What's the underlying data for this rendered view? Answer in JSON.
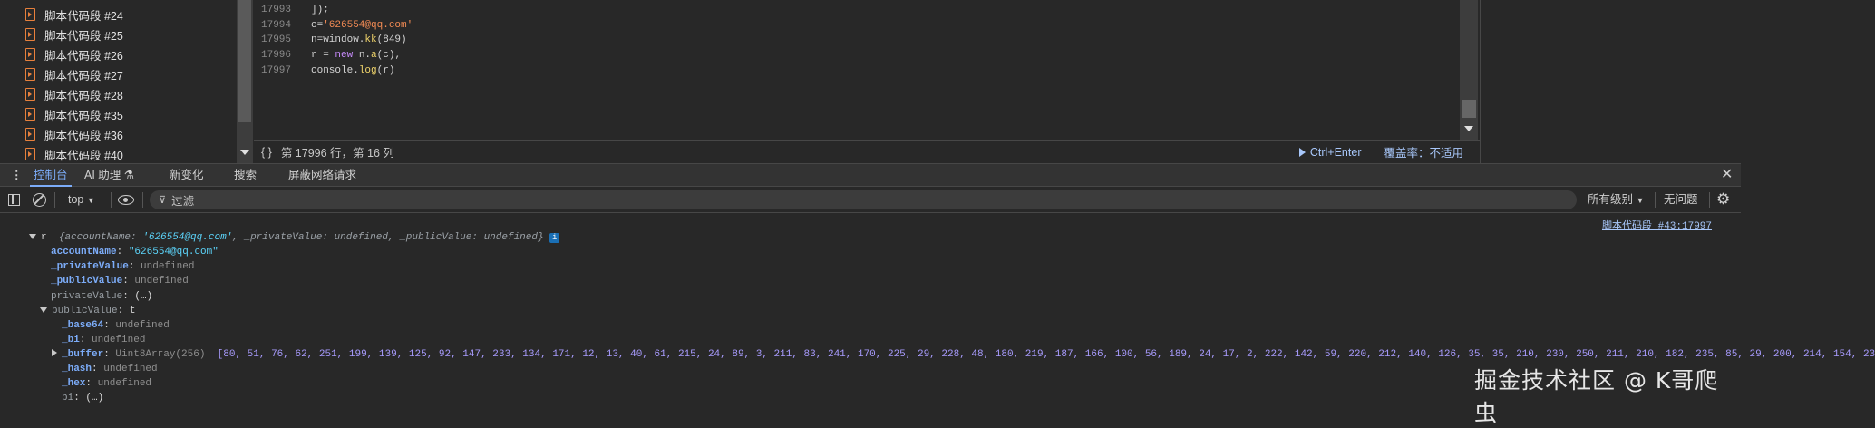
{
  "sidebar": {
    "items": [
      {
        "label": "脚本代码段 #24"
      },
      {
        "label": "脚本代码段 #25"
      },
      {
        "label": "脚本代码段 #26"
      },
      {
        "label": "脚本代码段 #27"
      },
      {
        "label": "脚本代码段 #28"
      },
      {
        "label": "脚本代码段 #35"
      },
      {
        "label": "脚本代码段 #36"
      },
      {
        "label": "脚本代码段 #40"
      }
    ]
  },
  "editor": {
    "lines": [
      {
        "num": "17993",
        "code": "]);"
      },
      {
        "num": "17994",
        "pre": "c=",
        "str": "'626554@qq.com'"
      },
      {
        "num": "17995",
        "pre": "n=window.",
        "fn": "kk",
        "post": "(849)"
      },
      {
        "num": "17996",
        "pre": "r = ",
        "kw": "new",
        "mid": " n.",
        "fn": "a",
        "post": "(c),"
      },
      {
        "num": "17997",
        "pre": "console.",
        "fn": "log",
        "post": "(r)"
      }
    ],
    "status": {
      "braces": "{ }",
      "position": "第 17996 行，第 16 列",
      "run": "Ctrl+Enter",
      "coverage": "覆盖率：不适用"
    }
  },
  "tabs": [
    {
      "label": "控制台",
      "active": true
    },
    {
      "label": "AI 助理 ⚗"
    },
    {
      "label": "新变化"
    },
    {
      "label": "搜索"
    },
    {
      "label": "屏蔽网络请求"
    }
  ],
  "toolbar": {
    "context": "top",
    "filter_placeholder": "过滤",
    "levels": "所有级别",
    "issues": "无问题"
  },
  "console": {
    "source_link": "脚本代码段 #43:17997",
    "summary": {
      "var": "r",
      "open": "{",
      "k1": "accountName",
      "v1": "'626554@qq.com'",
      "k2": "_privateValue",
      "v2": "undefined",
      "k3": "_publicValue",
      "v3": "undefined",
      "close": "}"
    },
    "props": [
      {
        "key": "accountName",
        "value": "\"626554@qq.com\""
      },
      {
        "key": "_privateValue",
        "value": "undefined"
      },
      {
        "key": "_publicValue",
        "value": "undefined"
      },
      {
        "key": "privateValue",
        "value": "(…)"
      }
    ],
    "publicValue": {
      "key": "publicValue",
      "value": "t",
      "children": [
        {
          "key": "_base64",
          "value": "undefined"
        },
        {
          "key": "_bi",
          "value": "undefined"
        },
        {
          "key": "_buffer",
          "type": "Uint8Array(256)",
          "value": "[80, 51, 76, 62, 251, 199, 139, 125, 92, 147, 233, 134, 171, 12, 13, 40, 61, 215, 24, 89, 3, 211, 83, 241, 170, 225, 29, 228, 48, 180, 219, 187, 166, 100, 56, 189, 24, 17, 2, 222, 142, 59, 220, 212, 140, 126, 35, 35, 210, 230, 250, 211, 210, 182, 235, 85, 29, 200, 214, 154, 23"
        },
        {
          "key": "_hash",
          "value": "undefined"
        },
        {
          "key": "_hex",
          "value": "undefined"
        },
        {
          "key": "bi",
          "value": "(…)"
        }
      ]
    }
  },
  "watermark": "掘金技术社区 @ K哥爬虫"
}
